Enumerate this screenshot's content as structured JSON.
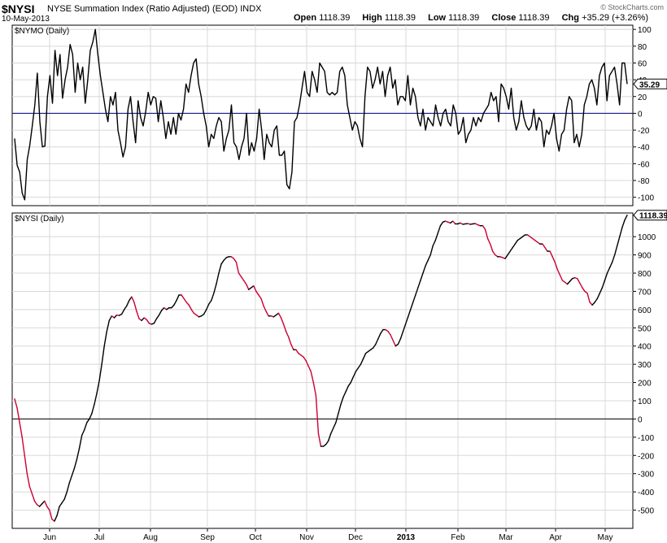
{
  "header": {
    "symbol": "$NYSI",
    "description": "NYSE Summation Index (Ratio Adjusted) (EOD)",
    "exchange": "INDX",
    "date": "10-May-2013",
    "watermark": "© StockCharts.com",
    "quote": {
      "open_label": "Open",
      "open": "1118.39",
      "high_label": "High",
      "high": "1118.39",
      "low_label": "Low",
      "low": "1118.39",
      "close_label": "Close",
      "close": "1118.39",
      "chg_label": "Chg",
      "chg": "+35.29 (+3.26%)"
    }
  },
  "colors": {
    "up": "#000000",
    "down": "#cc0033",
    "zero_line_top": "#000080",
    "grid": "#d8d8d8"
  },
  "chart_data": [
    {
      "type": "line",
      "title": "$NYMO (Daily)",
      "last_value_label": "35.29",
      "ylim": [
        -110,
        105
      ],
      "y_ticks": [
        100,
        80,
        60,
        40,
        20,
        0,
        -20,
        -40,
        -60,
        -80,
        -100
      ],
      "series": [
        {
          "values": [
            -30,
            -62,
            -70,
            -95,
            -103,
            -55,
            -38,
            -15,
            10,
            48,
            -10,
            -40,
            -39,
            20,
            45,
            12,
            75,
            45,
            70,
            18,
            40,
            55,
            82,
            70,
            25,
            60,
            40,
            55,
            12,
            40,
            75,
            85,
            100,
            70,
            45,
            25,
            5,
            -10,
            20,
            10,
            25,
            -20,
            -35,
            -52,
            -40,
            5,
            20,
            -10,
            -35,
            15,
            -5,
            -15,
            2,
            25,
            10,
            20,
            18,
            -10,
            15,
            -5,
            -30,
            -10,
            -25,
            -5,
            -25,
            0,
            -8,
            5,
            35,
            25,
            45,
            60,
            65,
            35,
            20,
            0,
            -15,
            -40,
            -25,
            -30,
            -15,
            -5,
            -10,
            -45,
            -30,
            -20,
            10,
            -35,
            -40,
            -55,
            -40,
            -30,
            0,
            -50,
            -35,
            -45,
            -30,
            5,
            -20,
            -55,
            -25,
            -35,
            -40,
            -20,
            -15,
            -50,
            -50,
            -45,
            -85,
            -90,
            -70,
            -10,
            -5,
            10,
            30,
            50,
            25,
            20,
            50,
            40,
            25,
            60,
            55,
            50,
            25,
            22,
            25,
            22,
            25,
            50,
            55,
            45,
            10,
            -5,
            -20,
            -10,
            -15,
            -30,
            -40,
            20,
            55,
            50,
            30,
            40,
            55,
            35,
            50,
            20,
            45,
            55,
            30,
            40,
            10,
            20,
            20,
            15,
            45,
            10,
            30,
            20,
            -5,
            -15,
            5,
            -20,
            -5,
            -10,
            -15,
            10,
            -5,
            -15,
            0,
            5,
            -10,
            -15,
            10,
            0,
            -25,
            -20,
            -5,
            -35,
            -25,
            -20,
            -5,
            -15,
            -5,
            -10,
            0,
            5,
            10,
            25,
            15,
            20,
            -10,
            35,
            30,
            20,
            5,
            30,
            -5,
            -20,
            -10,
            15,
            -5,
            -15,
            -20,
            -15,
            5,
            -20,
            -5,
            -10,
            -40,
            -20,
            -25,
            -15,
            0,
            -30,
            -45,
            -25,
            -20,
            5,
            20,
            15,
            -35,
            -25,
            -40,
            -25,
            10,
            20,
            35,
            40,
            30,
            10,
            45,
            55,
            60,
            15,
            45,
            50,
            55,
            35,
            10,
            60,
            60,
            35
          ]
        }
      ],
      "zero_line": true
    },
    {
      "type": "line",
      "title": "$NYSI (Daily)",
      "last_value_label": "1118.39",
      "ylim": [
        -600,
        1130
      ],
      "y_ticks": [
        1000,
        900,
        800,
        700,
        600,
        500,
        400,
        300,
        200,
        100,
        0,
        -100,
        -200,
        -300,
        -400,
        -500
      ],
      "x_tick_labels": [
        "Jun",
        "Jul",
        "Aug",
        "Sep",
        "Oct",
        "Nov",
        "Dec",
        "2013",
        "Feb",
        "Mar",
        "Apr",
        "May"
      ],
      "series": [
        {
          "values": [
            110,
            60,
            -20,
            -100,
            -200,
            -300,
            -370,
            -410,
            -450,
            -470,
            -480,
            -465,
            -450,
            -480,
            -500,
            -550,
            -560,
            -530,
            -480,
            -460,
            -440,
            -400,
            -350,
            -310,
            -270,
            -220,
            -160,
            -90,
            -60,
            -20,
            0,
            30,
            80,
            140,
            210,
            300,
            400,
            480,
            540,
            565,
            555,
            570,
            568,
            575,
            600,
            620,
            650,
            670,
            640,
            590,
            550,
            540,
            555,
            545,
            525,
            520,
            525,
            550,
            570,
            595,
            610,
            600,
            610,
            610,
            625,
            650,
            680,
            680,
            660,
            640,
            625,
            600,
            580,
            570,
            560,
            565,
            575,
            600,
            630,
            650,
            690,
            740,
            800,
            850,
            870,
            885,
            890,
            890,
            880,
            860,
            800,
            780,
            760,
            740,
            710,
            720,
            730,
            700,
            680,
            660,
            620,
            590,
            565,
            565,
            560,
            570,
            580,
            555,
            520,
            480,
            450,
            410,
            380,
            380,
            360,
            350,
            340,
            320,
            290,
            260,
            200,
            130,
            -80,
            -150,
            -150,
            -140,
            -120,
            -80,
            -50,
            -20,
            30,
            80,
            120,
            150,
            180,
            200,
            230,
            260,
            280,
            300,
            330,
            360,
            370,
            380,
            390,
            410,
            440,
            470,
            490,
            490,
            480,
            460,
            430,
            400,
            410,
            440,
            480,
            520,
            560,
            600,
            640,
            680,
            720,
            760,
            800,
            840,
            870,
            900,
            950,
            980,
            1020,
            1060,
            1080,
            1085,
            1080,
            1075,
            1085,
            1070,
            1070,
            1075,
            1068,
            1070,
            1072,
            1068,
            1070,
            1072,
            1065,
            1060,
            1060,
            1040,
            990,
            960,
            920,
            900,
            890,
            890,
            885,
            880,
            900,
            920,
            940,
            960,
            980,
            990,
            1000,
            1010,
            1010,
            1000,
            990,
            980,
            970,
            960,
            960,
            940,
            920,
            920,
            890,
            860,
            820,
            790,
            760,
            750,
            740,
            755,
            770,
            775,
            770,
            745,
            720,
            700,
            690,
            640,
            625,
            640,
            660,
            690,
            720,
            760,
            800,
            830,
            860,
            900,
            950,
            1000,
            1050,
            1090,
            1118
          ]
        }
      ],
      "zero_line": true
    }
  ]
}
